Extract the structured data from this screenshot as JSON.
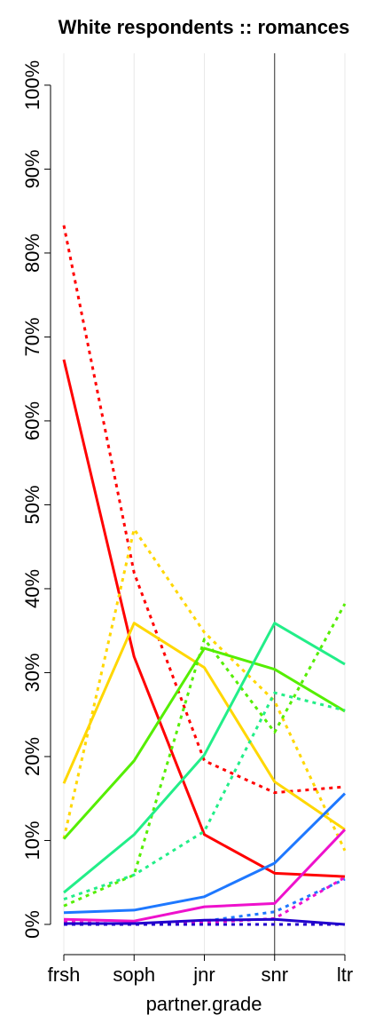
{
  "chart_data": {
    "type": "line",
    "title": "White respondents :: romances",
    "x_label": "partner.grade",
    "categories": [
      "frsh",
      "soph",
      "jnr",
      "snr",
      "ltr"
    ],
    "ylim": [
      -3.6,
      103.8
    ],
    "yticks": [
      {
        "value": 0,
        "label": "0%"
      },
      {
        "value": 10,
        "label": "10%"
      },
      {
        "value": 20,
        "label": "20%"
      },
      {
        "value": 30,
        "label": "30%"
      },
      {
        "value": 40,
        "label": "40%"
      },
      {
        "value": 50,
        "label": "50%"
      },
      {
        "value": 60,
        "label": "60%"
      },
      {
        "value": 70,
        "label": "70%"
      },
      {
        "value": 80,
        "label": "80%"
      },
      {
        "value": 90,
        "label": "90%"
      },
      {
        "value": 100,
        "label": "100%"
      }
    ],
    "x_grid": true,
    "highlight_category": 3,
    "series": [
      {
        "color": "#ff0000",
        "dashed": false,
        "values": [
          67.3,
          31.9,
          10.7,
          6.1,
          5.7
        ]
      },
      {
        "color": "#ff0000",
        "dashed": true,
        "values": [
          83.3,
          41.9,
          19.5,
          15.7,
          16.4
        ]
      },
      {
        "color": "#ffd700",
        "dashed": false,
        "values": [
          16.8,
          35.9,
          30.6,
          17.0,
          11.3
        ]
      },
      {
        "color": "#ffd700",
        "dashed": true,
        "values": [
          10.2,
          47.1,
          34.8,
          26.6,
          8.8
        ]
      },
      {
        "color": "#55ee00",
        "dashed": false,
        "values": [
          10.2,
          19.5,
          32.9,
          30.4,
          25.4
        ]
      },
      {
        "color": "#55ee00",
        "dashed": true,
        "values": [
          2.2,
          5.9,
          34.0,
          22.9,
          38.2
        ]
      },
      {
        "color": "#22ee88",
        "dashed": false,
        "values": [
          3.8,
          10.7,
          20.2,
          35.9,
          31.0
        ]
      },
      {
        "color": "#22ee88",
        "dashed": true,
        "values": [
          3.0,
          5.9,
          11.1,
          27.6,
          25.5
        ]
      },
      {
        "color": "#1e78ff",
        "dashed": false,
        "values": [
          1.4,
          1.7,
          3.3,
          7.3,
          15.6
        ]
      },
      {
        "color": "#1e78ff",
        "dashed": true,
        "values": [
          0.0,
          0.1,
          0.4,
          1.5,
          5.4
        ]
      },
      {
        "color": "#ee11cc",
        "dashed": false,
        "values": [
          0.6,
          0.4,
          2.1,
          2.5,
          11.3
        ]
      },
      {
        "color": "#ee11cc",
        "dashed": true,
        "values": [
          0.3,
          0.0,
          0.2,
          0.7,
          5.6
        ]
      },
      {
        "color": "#2200cc",
        "dashed": false,
        "values": [
          0.1,
          0.1,
          0.5,
          0.6,
          0.0
        ]
      },
      {
        "color": "#2200cc",
        "dashed": true,
        "values": [
          0.0,
          0.0,
          0.0,
          0.0,
          0.0
        ]
      }
    ]
  }
}
